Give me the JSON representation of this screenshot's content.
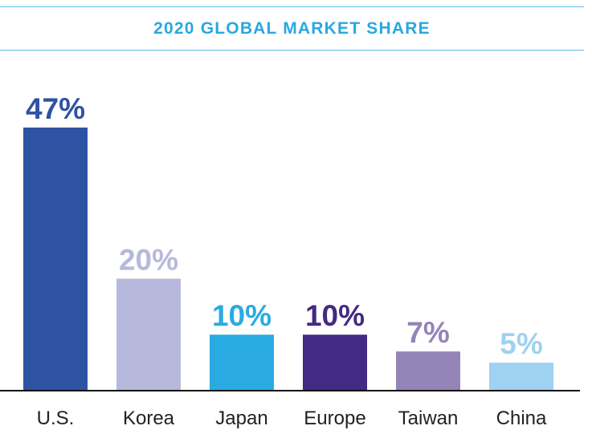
{
  "chart_data": {
    "type": "bar",
    "title": "2020 GLOBAL MARKET SHARE",
    "categories": [
      "U.S.",
      "Korea",
      "Japan",
      "Europe",
      "Taiwan",
      "China"
    ],
    "values": [
      47,
      20,
      10,
      10,
      7,
      5
    ],
    "value_labels": [
      "47%",
      "20%",
      "10%",
      "10%",
      "7%",
      "5%"
    ],
    "colors": [
      "#2e53a3",
      "#b7b9dc",
      "#29abe2",
      "#432a83",
      "#9484b8",
      "#9fd1f0"
    ],
    "label_colors": [
      "#2e53a3",
      "#b7b9dc",
      "#29abe2",
      "#432a83",
      "#9484b8",
      "#9fd1f0"
    ],
    "xlabel": "",
    "ylabel": "",
    "grid": false,
    "legend": "none"
  }
}
